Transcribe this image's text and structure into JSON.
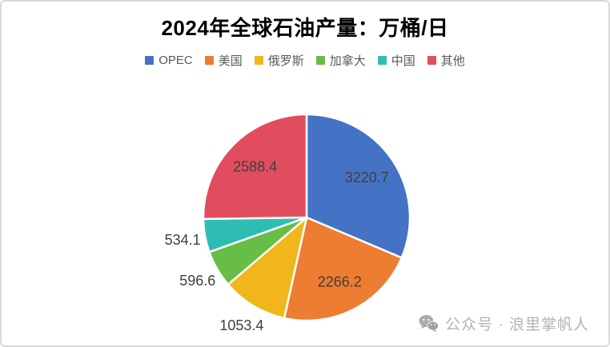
{
  "chart_data": {
    "type": "pie",
    "title": "2024年全球石油产量：万桶/日",
    "unit": "万桶/日",
    "categories": [
      "OPEC",
      "美国",
      "俄罗斯",
      "加拿大",
      "中国",
      "其他"
    ],
    "values": [
      3220.7,
      2266.2,
      1053.4,
      596.6,
      534.1,
      2588.4
    ],
    "value_labels": [
      "3220.7",
      "2266.2",
      "1053.4",
      "596.6",
      "534.1",
      "2588.4"
    ],
    "slice_ids": [
      "opec",
      "usa",
      "russia",
      "canada",
      "china",
      "others"
    ],
    "colors": [
      "#4472C4",
      "#ED7D31",
      "#F0B61B",
      "#68BD47",
      "#2EBDB3",
      "#E14D5E"
    ],
    "label_placement": [
      "inside",
      "inside",
      "outside",
      "outside",
      "outside",
      "inside"
    ],
    "label_color": "#3f3f3f",
    "slice_border_color": "#ffffff",
    "legend_position": "top",
    "start": "top",
    "direction": "clockwise"
  },
  "watermark": {
    "icon": "wechat-icon",
    "text": "公众号 · 浪里掌帆人"
  }
}
